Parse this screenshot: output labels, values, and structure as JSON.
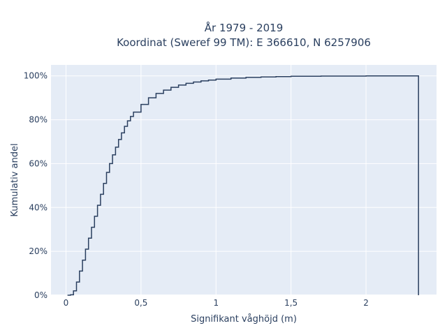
{
  "chart_data": {
    "type": "line",
    "line_shape": "step",
    "title_line1": "År 1979 - 2019",
    "title_line2": "Koordinat (Sweref 99 TM): E 366610, N 6257906",
    "xlabel": "Signifikant våghöjd (m)",
    "ylabel": "Kumulativ andel",
    "xlim": [
      -0.1,
      2.47
    ],
    "ylim": [
      0,
      1.05
    ],
    "x_ticks": [
      0,
      0.5,
      1,
      1.5,
      2
    ],
    "x_tick_labels": [
      "0",
      "0,5",
      "1",
      "1,5",
      "2"
    ],
    "y_ticks": [
      0,
      0.2,
      0.4,
      0.6,
      0.8,
      1.0
    ],
    "y_tick_labels": [
      "0%",
      "20%",
      "40%",
      "60%",
      "80%",
      "100%"
    ],
    "grid": true,
    "colors": {
      "plot_bg": "#e5ecf6",
      "grid": "#ffffff",
      "line": "#2a3f5f",
      "text": "#2a3f5f"
    },
    "series": [
      {
        "points": [
          [
            0.01,
            0.0
          ],
          [
            0.03,
            0.002
          ],
          [
            0.05,
            0.02
          ],
          [
            0.07,
            0.06
          ],
          [
            0.09,
            0.11
          ],
          [
            0.11,
            0.16
          ],
          [
            0.13,
            0.21
          ],
          [
            0.15,
            0.26
          ],
          [
            0.17,
            0.31
          ],
          [
            0.19,
            0.36
          ],
          [
            0.21,
            0.41
          ],
          [
            0.23,
            0.46
          ],
          [
            0.25,
            0.51
          ],
          [
            0.27,
            0.56
          ],
          [
            0.29,
            0.6
          ],
          [
            0.31,
            0.64
          ],
          [
            0.33,
            0.675
          ],
          [
            0.35,
            0.71
          ],
          [
            0.37,
            0.74
          ],
          [
            0.39,
            0.77
          ],
          [
            0.41,
            0.795
          ],
          [
            0.43,
            0.815
          ],
          [
            0.45,
            0.835
          ],
          [
            0.5,
            0.87
          ],
          [
            0.55,
            0.9
          ],
          [
            0.6,
            0.92
          ],
          [
            0.65,
            0.935
          ],
          [
            0.7,
            0.948
          ],
          [
            0.75,
            0.958
          ],
          [
            0.8,
            0.966
          ],
          [
            0.85,
            0.972
          ],
          [
            0.9,
            0.977
          ],
          [
            0.95,
            0.981
          ],
          [
            1.0,
            0.985
          ],
          [
            1.1,
            0.99
          ],
          [
            1.2,
            0.993
          ],
          [
            1.3,
            0.995
          ],
          [
            1.4,
            0.997
          ],
          [
            1.5,
            0.998
          ],
          [
            1.7,
            0.999
          ],
          [
            2.0,
            1.0
          ],
          [
            2.35,
            1.0
          ],
          [
            2.35,
            0.0
          ]
        ]
      }
    ]
  }
}
